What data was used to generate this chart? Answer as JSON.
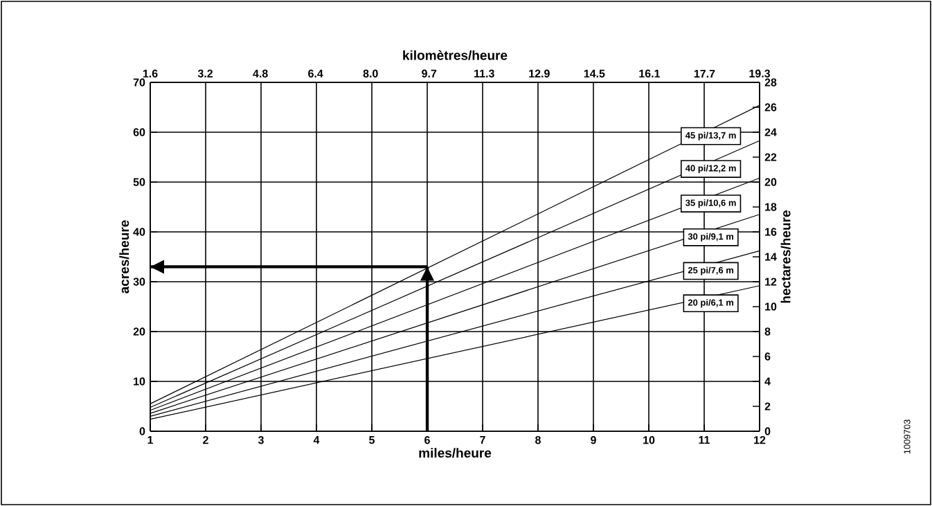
{
  "chart_data": {
    "type": "line",
    "xlabel": "miles/heure",
    "ylabel": "acres/heure",
    "y2label": "hectares/heure",
    "x2label": "kilomètres/heure",
    "xlim": [
      1,
      12
    ],
    "xticks": [
      1,
      2,
      3,
      4,
      5,
      6,
      7,
      8,
      9,
      10,
      11,
      12
    ],
    "ylim": [
      0,
      70
    ],
    "yticks": [
      0,
      10,
      20,
      30,
      40,
      50,
      60,
      70
    ],
    "y2lim": [
      0,
      28
    ],
    "y2ticks": [
      0,
      2,
      4,
      6,
      8,
      10,
      12,
      14,
      16,
      18,
      20,
      22,
      24,
      26,
      28
    ],
    "x2lim": [
      1.6,
      19.3
    ],
    "x2ticks": [
      1.6,
      3.2,
      4.8,
      6.4,
      {
        "value": 8,
        "label": "8.0"
      },
      9.7,
      11.3,
      12.9,
      14.5,
      16.1,
      17.7,
      19.3
    ],
    "grid": true,
    "legend": "right",
    "annotations": [
      "1009703"
    ],
    "series": [
      {
        "name": "45 pi/13,7 m",
        "color": "#000000",
        "x": [
          1,
          12
        ],
        "values": [
          5.5,
          65.4
        ]
      },
      {
        "name": "40 pi/12,2 m",
        "color": "#000000",
        "x": [
          1,
          12
        ],
        "values": [
          4.8,
          58.3
        ]
      },
      {
        "name": "35 pi/10,6 m",
        "color": "#000000",
        "x": [
          1,
          12
        ],
        "values": [
          4.2,
          50.8
        ]
      },
      {
        "name": "30 pi/9,1 m",
        "color": "#000000",
        "x": [
          1,
          12
        ],
        "values": [
          3.6,
          43.5
        ]
      },
      {
        "name": "25 pi/7,6 m",
        "color": "#000000",
        "x": [
          1,
          12
        ],
        "values": [
          3.0,
          36.2
        ]
      },
      {
        "name": "20 pi/6,1 m",
        "color": "#000000",
        "x": [
          1,
          12
        ],
        "values": [
          2.4,
          29.2
        ]
      },
      {
        "color": "#000000",
        "x": [
          6,
          6
        ],
        "values": [
          0,
          33
        ]
      },
      {
        "color": "#000000",
        "x": [
          6,
          1
        ],
        "values": [
          33,
          33
        ]
      }
    ]
  }
}
